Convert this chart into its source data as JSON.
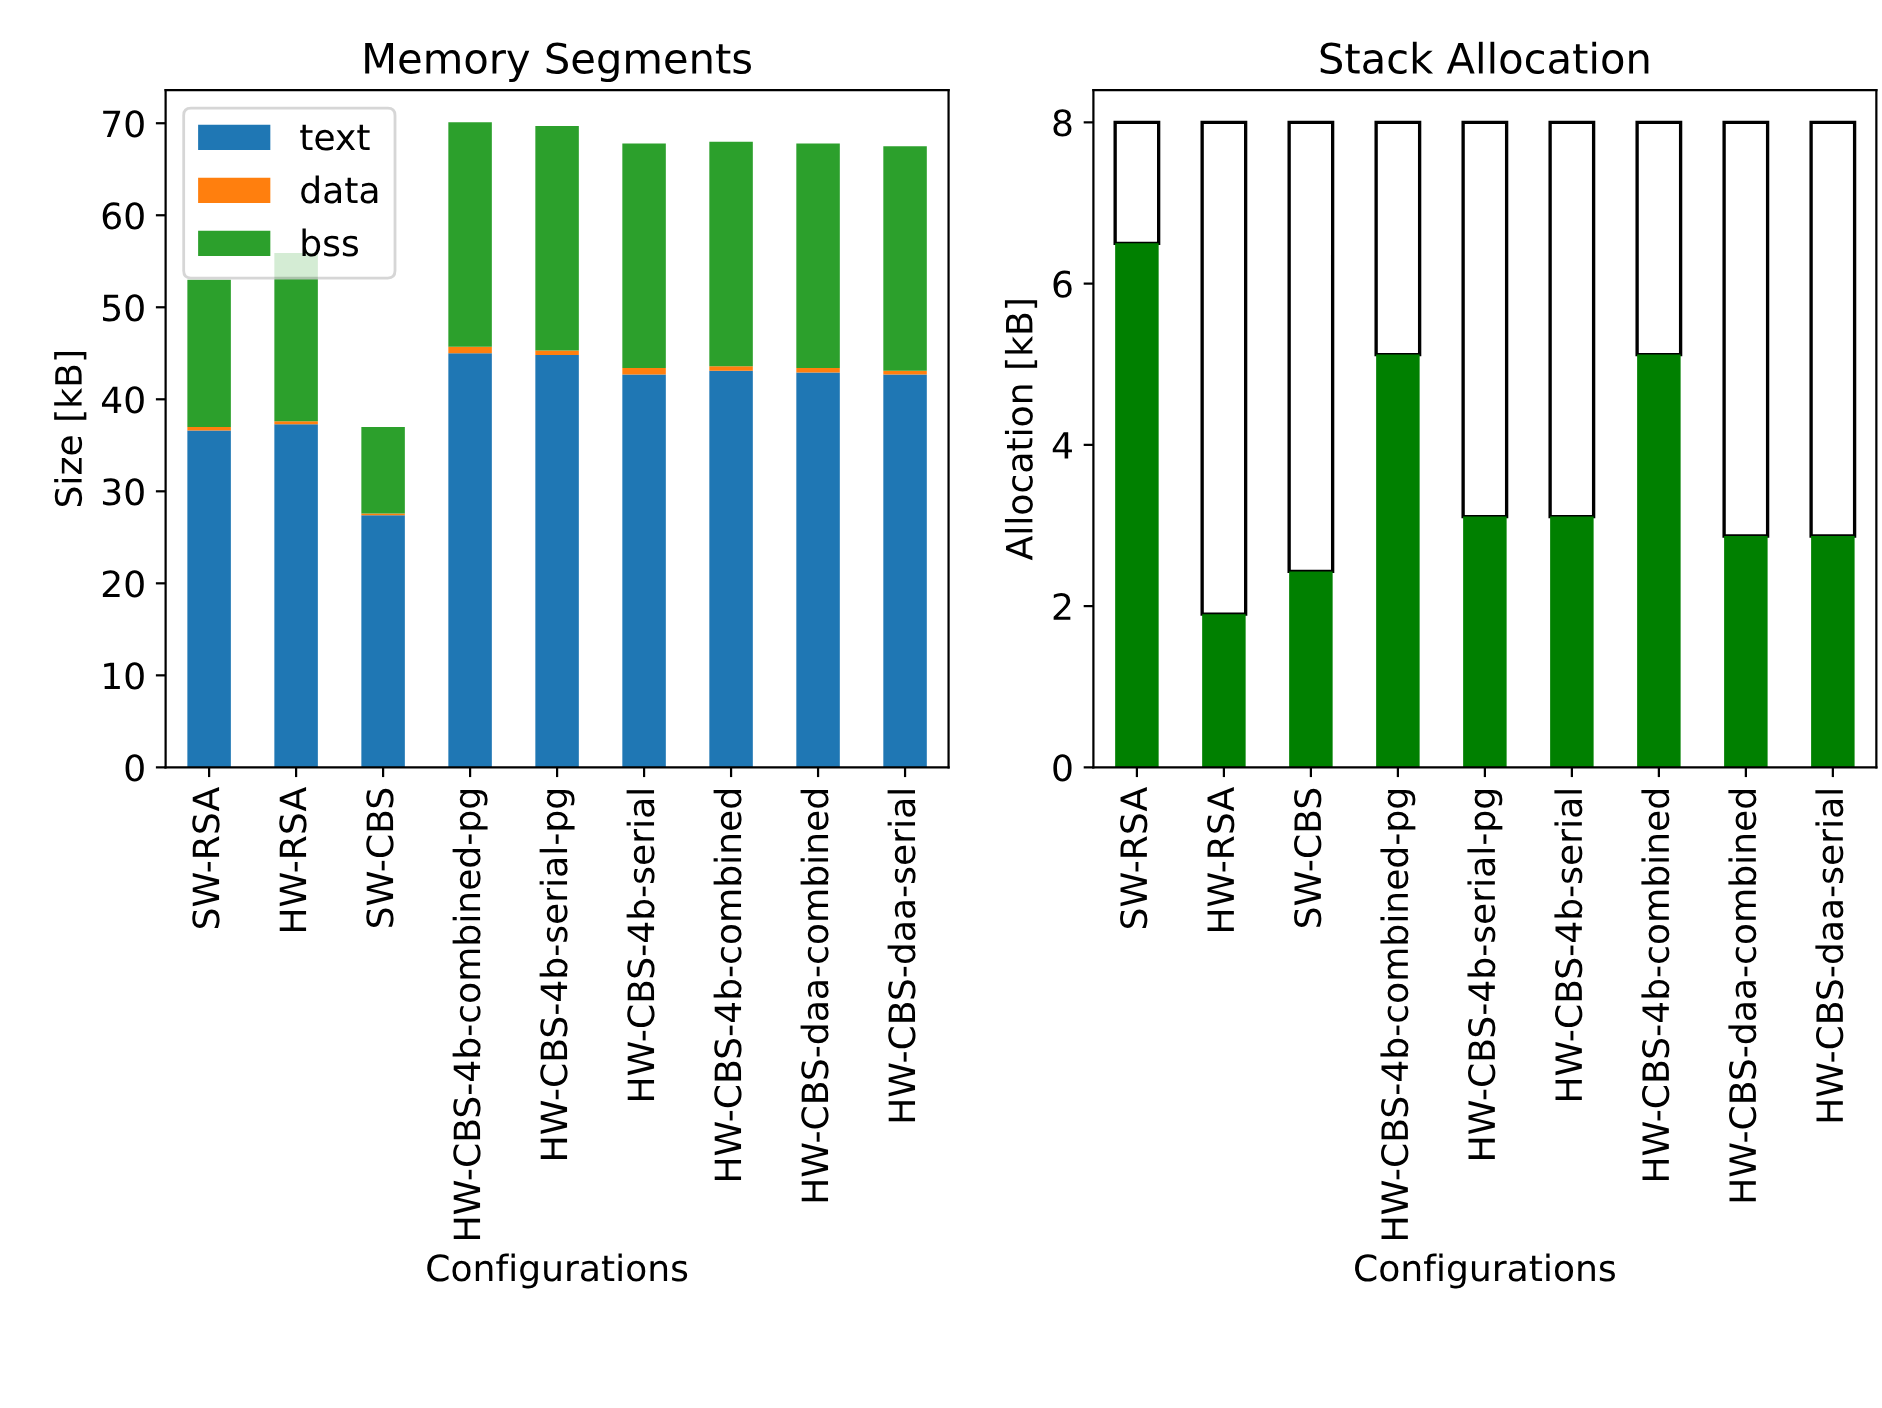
{
  "chart_data": [
    {
      "type": "bar",
      "title": "Memory Segments",
      "xlabel": "Configurations",
      "ylabel": "Size [kB]",
      "stacked": true,
      "legend": "top left",
      "grid": false,
      "categories": [
        "SW-RSA",
        "HW-RSA",
        "SW-CBS",
        "HW-CBS-4b-combined-pg",
        "HW-CBS-4b-serial-pg",
        "HW-CBS-4b-serial",
        "HW-CBS-4b-combined",
        "HW-CBS-daa-combined",
        "HW-CBS-daa-serial"
      ],
      "ylim": [
        0,
        73.6
      ],
      "yticks": [
        0,
        10,
        20,
        30,
        40,
        50,
        60,
        70
      ],
      "series": [
        {
          "name": "text",
          "color": "#1f77b4",
          "values": [
            36.6,
            37.3,
            27.4,
            45.0,
            44.8,
            42.7,
            43.1,
            42.9,
            42.7
          ]
        },
        {
          "name": "data",
          "color": "#ff7f0e",
          "values": [
            0.4,
            0.3,
            0.2,
            0.7,
            0.5,
            0.7,
            0.5,
            0.5,
            0.4
          ]
        },
        {
          "name": "bss",
          "color": "#2ca02c",
          "values": [
            16.0,
            18.3,
            9.4,
            24.4,
            24.4,
            24.4,
            24.4,
            24.4,
            24.4
          ]
        }
      ]
    },
    {
      "type": "bar",
      "title": "Stack Allocation",
      "xlabel": "Configurations",
      "ylabel": "Allocation [kB]",
      "stacked": true,
      "grid": false,
      "categories": [
        "SW-RSA",
        "HW-RSA",
        "SW-CBS",
        "HW-CBS-4b-combined-pg",
        "HW-CBS-4b-serial-pg",
        "HW-CBS-4b-serial",
        "HW-CBS-4b-combined",
        "HW-CBS-daa-combined",
        "HW-CBS-daa-serial"
      ],
      "ylim": [
        0,
        8.4
      ],
      "yticks": [
        0,
        2,
        4,
        6,
        8
      ],
      "series": [
        {
          "color": "#008000",
          "values": [
            6.5,
            1.9,
            2.43,
            5.12,
            3.11,
            3.11,
            5.12,
            2.87,
            2.87
          ]
        },
        {
          "color": "#ffffff",
          "values": [
            1.5,
            6.1,
            5.57,
            2.88,
            4.89,
            4.89,
            2.88,
            5.13,
            5.13
          ]
        }
      ]
    }
  ]
}
